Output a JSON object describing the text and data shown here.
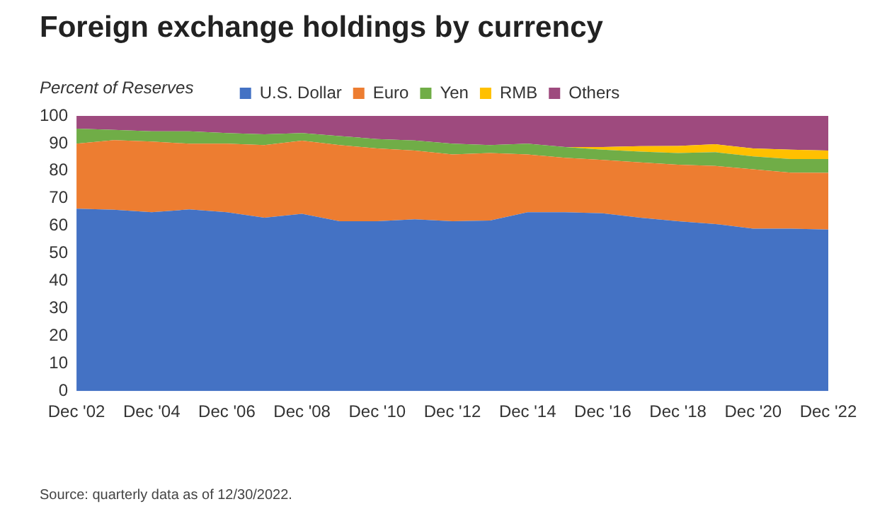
{
  "chart_data": {
    "type": "area",
    "stacked": true,
    "title": "Foreign exchange holdings by currency",
    "ylabel": "Percent of Reserves",
    "categories": [
      "Dec '02",
      null,
      "Dec '04",
      null,
      "Dec '06",
      null,
      "Dec '08",
      null,
      "Dec '10",
      null,
      "Dec '12",
      null,
      "Dec '14",
      null,
      "Dec '16",
      null,
      "Dec '18",
      null,
      "Dec '20",
      null,
      "Dec '22"
    ],
    "series": [
      {
        "name": "U.S. Dollar",
        "color": "#4472c4",
        "values": [
          66.3,
          65.9,
          65,
          66,
          65,
          63,
          64.4,
          61.7,
          61.7,
          62.4,
          61.7,
          62,
          65,
          65,
          64.6,
          63,
          61.7,
          60.7,
          59,
          59,
          58.7
        ]
      },
      {
        "name": "Euro",
        "color": "#ed7d31",
        "values": [
          23.6,
          25.3,
          25.7,
          23.9,
          24.9,
          26.4,
          26.6,
          27.7,
          26.5,
          25,
          24.3,
          24.5,
          21,
          19.8,
          19.4,
          20.1,
          20.6,
          21.1,
          21.6,
          20.4,
          20.6
        ]
      },
      {
        "name": "Yen",
        "color": "#70ad47",
        "values": [
          5.5,
          3.7,
          3.7,
          4.5,
          3.9,
          3.9,
          2.8,
          3.3,
          3.4,
          3.7,
          3.9,
          2.9,
          3.9,
          3.9,
          3.7,
          3.9,
          4.2,
          5,
          4.7,
          4.9,
          5
        ]
      },
      {
        "name": "RMB",
        "color": "#ffc000",
        "values": [
          0,
          0,
          0,
          0,
          0,
          0,
          0,
          0,
          0,
          0,
          0,
          0,
          0,
          0,
          1,
          2,
          2.6,
          2.9,
          2.9,
          3.4,
          3.1
        ]
      },
      {
        "name": "Others",
        "color": "#9e4a7e",
        "values": [
          4.6,
          5.1,
          5.6,
          5.6,
          6.2,
          6.7,
          6.2,
          7.3,
          8.4,
          8.9,
          10.1,
          10.6,
          10.1,
          11.3,
          11.3,
          11,
          10.9,
          10.3,
          11.8,
          12.3,
          12.6
        ]
      }
    ],
    "ylim": [
      0,
      100
    ],
    "yticks": [
      0,
      10,
      20,
      30,
      40,
      50,
      60,
      70,
      80,
      90,
      100
    ],
    "grid": false,
    "legend": "top",
    "marker": "none",
    "annotations": [
      "Source: quarterly data as of 12/30/2022."
    ]
  }
}
